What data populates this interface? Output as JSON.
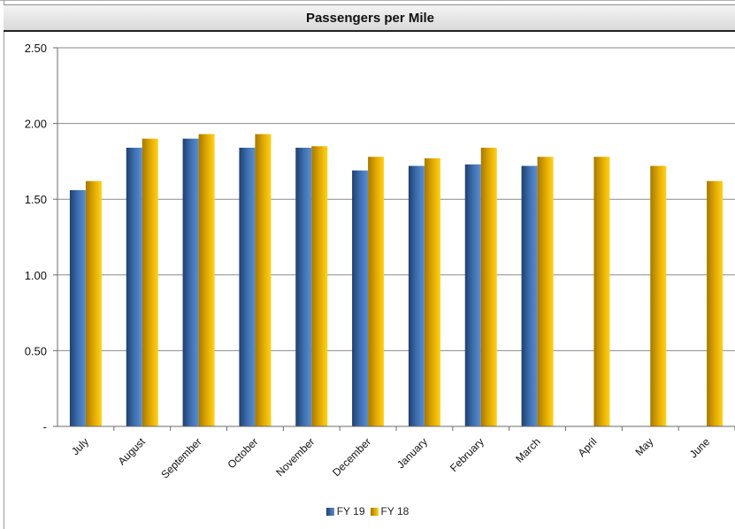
{
  "chart_data": {
    "type": "bar",
    "title": "Passengers per Mile",
    "categories": [
      "July",
      "August",
      "September",
      "October",
      "November",
      "December",
      "January",
      "February",
      "March",
      "April",
      "May",
      "June"
    ],
    "series": [
      {
        "name": "FY 19",
        "color": "#3a6aa8",
        "values": [
          1.56,
          1.84,
          1.9,
          1.84,
          1.84,
          1.69,
          1.72,
          1.73,
          1.72,
          null,
          null,
          null
        ]
      },
      {
        "name": "FY 18",
        "color": "#f0b400",
        "values": [
          1.62,
          1.9,
          1.93,
          1.93,
          1.85,
          1.78,
          1.77,
          1.84,
          1.78,
          1.78,
          1.72,
          1.62
        ]
      }
    ],
    "ylim": [
      0,
      2.5
    ],
    "yticks": [
      0,
      0.5,
      1.0,
      1.5,
      2.0,
      2.5
    ],
    "ytick_labels": [
      "-",
      "0.50",
      "1.00",
      "1.50",
      "2.00",
      "2.50"
    ],
    "xlabel": "",
    "ylabel": "",
    "grid": true,
    "legend_position": "bottom"
  }
}
